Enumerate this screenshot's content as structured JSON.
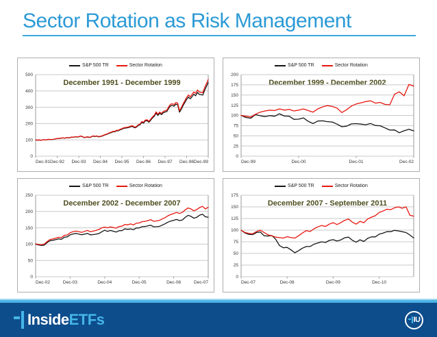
{
  "slide": {
    "title": "Sector Rotation as Risk Management"
  },
  "colors": {
    "accent_blue": "#2b9ad6",
    "underline_blue": "#3aa8dc",
    "chart_title_olive": "#4e4e20",
    "series_black": "#141414",
    "series_red": "#e8150d",
    "grid": "#c9c9c9",
    "axis": "#999999",
    "axis_label": "#333333",
    "panel_border": "#adadad",
    "footer_navy": "#0d4d8c",
    "footer_light_blue": "#45b5e8"
  },
  "footer": {
    "brand_primary": "Inside",
    "brand_secondary": "ETFs",
    "badge_text": "IU",
    "icons": {
      "brand_mark": "dash-bar-plus-mark",
      "badge_mark": "dash-bar-plus-mark"
    }
  },
  "chart_data": [
    {
      "type": "line",
      "title": "December 1991 - December 1999",
      "legend_position": "top",
      "grid": true,
      "ylim": [
        0,
        500
      ],
      "y_ticks": [
        0,
        100,
        200,
        300,
        400,
        500
      ],
      "x_tick_labels": [
        "Dec-91",
        "Dec-92",
        "Dec-93",
        "Dec-94",
        "Dec-95",
        "Dec-96",
        "Dec-97",
        "Dec-98",
        "Dec-99"
      ],
      "x_tick_step": 12,
      "x_unit": "months",
      "series": [
        {
          "name": "S&P 500 TR",
          "color_key": "series_black",
          "values": [
            100,
            98.1,
            99.4,
            97.5,
            100.4,
            100.9,
            99.4,
            103.4,
            101.3,
            102.5,
            102.9,
            106.4,
            107.6,
            108.5,
            110,
            112.3,
            109.6,
            112.5,
            112.9,
            112.4,
            116.7,
            115.8,
            118.2,
            117.1,
            118.5,
            122.5,
            119.2,
            114,
            115.5,
            117.4,
            114.5,
            118.3,
            123.1,
            120.1,
            122.8,
            118.3,
            120.1,
            123.2,
            128,
            131.8,
            135.7,
            141.1,
            144.4,
            149.2,
            149.5,
            155.8,
            155.3,
            162.1,
            165.2,
            170.8,
            172.4,
            174.1,
            176.6,
            181.2,
            181.9,
            173.8,
            177.5,
            187.5,
            192.6,
            207.2,
            203.1,
            215.8,
            217.5,
            208.5,
            221,
            234.4,
            244.9,
            264.4,
            249.6,
            263.2,
            254.5,
            266.3,
            270.8,
            273.8,
            293.5,
            308.6,
            311.7,
            306.3,
            318.8,
            315.4,
            269.8,
            287.1,
            310.4,
            329.2,
            348.2,
            362.8,
            351.5,
            365.5,
            379.7,
            370.7,
            391.3,
            379.1,
            377.2,
            375,
            405,
            428,
            452
          ]
        },
        {
          "name": "Sector Rotation",
          "color_key": "series_red",
          "values": [
            100,
            98.1,
            99.5,
            97.6,
            100.6,
            101.1,
            99.6,
            103.7,
            101.6,
            102.9,
            103.3,
            106.9,
            108.1,
            109.1,
            110.6,
            113,
            110.3,
            113.3,
            113.7,
            113.3,
            117.7,
            116.8,
            119.3,
            118.2,
            119.7,
            123.8,
            120.5,
            115.3,
            116.8,
            118.8,
            115.9,
            119.8,
            124.7,
            121.8,
            124.5,
            120,
            121.9,
            125.1,
            130,
            133.9,
            138,
            143.5,
            146.9,
            151.9,
            152.2,
            158.7,
            158.3,
            165.3,
            168.5,
            174.3,
            176,
            177.8,
            180.4,
            185.2,
            186,
            177.8,
            181.6,
            192,
            196.3,
            212.3,
            208.2,
            221.3,
            223.1,
            214,
            226.9,
            240.8,
            251.6,
            271.8,
            256.7,
            270.8,
            261.9,
            274.2,
            278.9,
            282.1,
            302.5,
            318.3,
            321.6,
            316.1,
            329.2,
            325.8,
            278.8,
            296.8,
            321,
            340.6,
            360.4,
            375.6,
            364.1,
            378.8,
            393.6,
            384.5,
            406,
            393.5,
            391.6,
            389.6,
            421,
            445,
            470
          ]
        }
      ]
    },
    {
      "type": "line",
      "title": "December 1999 - December 2002",
      "legend_position": "top",
      "grid": true,
      "ylim": [
        0,
        200
      ],
      "y_ticks": [
        0,
        25,
        50,
        75,
        100,
        125,
        150,
        175,
        200
      ],
      "x_tick_labels": [
        "Dec-99",
        "Dec-00",
        "Dec-01",
        "Dec-02"
      ],
      "x_tick_step": 12,
      "x_unit": "months",
      "series": [
        {
          "name": "S&P 500 TR",
          "color_key": "series_black",
          "values": [
            100,
            95,
            93.1,
            102.2,
            99.1,
            97.1,
            99.5,
            97.9,
            104,
            98.5,
            98.1,
            90.4,
            90.8,
            94,
            85.4,
            80,
            86.2,
            86.8,
            84.7,
            83.8,
            78.6,
            72.2,
            73.6,
            79.2,
            79.9,
            78.7,
            77.2,
            80.1,
            75.3,
            74.7,
            69.4,
            64,
            64.4,
            57.4,
            62.4,
            66.1,
            62.2
          ]
        },
        {
          "name": "Sector Rotation",
          "color_key": "series_red",
          "values": [
            100,
            98,
            96,
            103,
            108,
            111,
            113,
            112,
            116,
            113,
            115,
            111,
            113,
            116,
            112,
            108,
            116,
            121,
            124,
            122,
            118,
            107,
            114,
            123,
            128,
            131,
            134,
            136,
            130,
            132,
            127,
            126,
            152,
            158,
            148,
            176,
            172
          ]
        }
      ]
    },
    {
      "type": "line",
      "title": "December 2002 - December 2007",
      "legend_position": "top",
      "grid": true,
      "ylim": [
        0,
        250
      ],
      "y_ticks": [
        0,
        50,
        100,
        150,
        200,
        250
      ],
      "x_tick_labels": [
        "Dec-02",
        "Dec-03",
        "Dec-04",
        "Dec-05",
        "Dec-06",
        "Dec-07"
      ],
      "x_tick_step": 12,
      "x_unit": "months",
      "series": [
        {
          "name": "S&P 500 TR",
          "color_key": "series_black",
          "values": [
            100,
            97.4,
            95.9,
            96.8,
            104.8,
            110.3,
            111.7,
            113.7,
            115.9,
            114.7,
            121.2,
            122.2,
            128.6,
            131,
            132.8,
            130.8,
            128.7,
            130.5,
            133,
            128.6,
            129.1,
            130.5,
            132.5,
            137.9,
            142.6,
            139.1,
            142,
            139.5,
            136.9,
            141.2,
            141.4,
            146.7,
            145.3,
            146.5,
            144.1,
            149.5,
            149.6,
            153.5,
            153.9,
            155.8,
            157.9,
            153.4,
            153.6,
            154.5,
            158.2,
            162.3,
            167.5,
            170.7,
            173.1,
            175.7,
            172.3,
            174.2,
            181.9,
            188.3,
            185.2,
            179.4,
            182.1,
            188.9,
            191.9,
            183.9,
            182.6
          ]
        },
        {
          "name": "Sector Rotation",
          "color_key": "series_red",
          "values": [
            101,
            99,
            98,
            100,
            108,
            114,
            116,
            118,
            121,
            120,
            127,
            128,
            135,
            138,
            140,
            138,
            136,
            139,
            142,
            138,
            140,
            142,
            145,
            150,
            152,
            150,
            153,
            151,
            149,
            154,
            155,
            160,
            159,
            162,
            159,
            164,
            165,
            169,
            170,
            172,
            175,
            170,
            171,
            173,
            177,
            181,
            187,
            191,
            194,
            197,
            194,
            197,
            205,
            211,
            208,
            202,
            206,
            212,
            216,
            208,
            213
          ]
        }
      ]
    },
    {
      "type": "line",
      "title": "December 2007 - September 2011",
      "legend_position": "top",
      "grid": true,
      "ylim": [
        0,
        175
      ],
      "y_ticks": [
        0,
        25,
        50,
        75,
        100,
        125,
        150,
        175
      ],
      "x_tick_labels": [
        "Dec-07",
        "Dec-08",
        "Dec-09",
        "Dec-10"
      ],
      "x_tick_step": 12,
      "x_unit": "months",
      "series": [
        {
          "name": "S&P 500 TR",
          "color_key": "series_black",
          "values": [
            100,
            94,
            90.9,
            90.5,
            94.9,
            96.1,
            88,
            87.3,
            88.5,
            80.6,
            67.1,
            62.2,
            62.9,
            57.6,
            51.5,
            56,
            61.3,
            64.8,
            64.9,
            69.8,
            72.3,
            75,
            73.6,
            78,
            79.5,
            76.6,
            79,
            83.7,
            85,
            78.2,
            74.1,
            79.3,
            75.7,
            82.5,
            85.6,
            85.6,
            91.3,
            93.5,
            96.7,
            96.7,
            99.5,
            98.4,
            96.8,
            94.8,
            89.6,
            83.3
          ]
        },
        {
          "name": "Sector Rotation",
          "color_key": "series_red",
          "values": [
            100,
            95,
            93,
            92,
            97,
            100,
            95,
            90,
            88,
            85,
            84,
            83,
            86,
            84,
            83,
            88,
            94,
            99,
            97,
            103,
            107,
            110,
            108,
            113,
            116,
            112,
            116,
            121,
            124,
            117,
            113,
            119,
            116,
            124,
            128,
            131,
            138,
            141,
            145,
            144,
            148,
            150,
            147,
            150,
            132,
            130
          ]
        }
      ]
    }
  ]
}
